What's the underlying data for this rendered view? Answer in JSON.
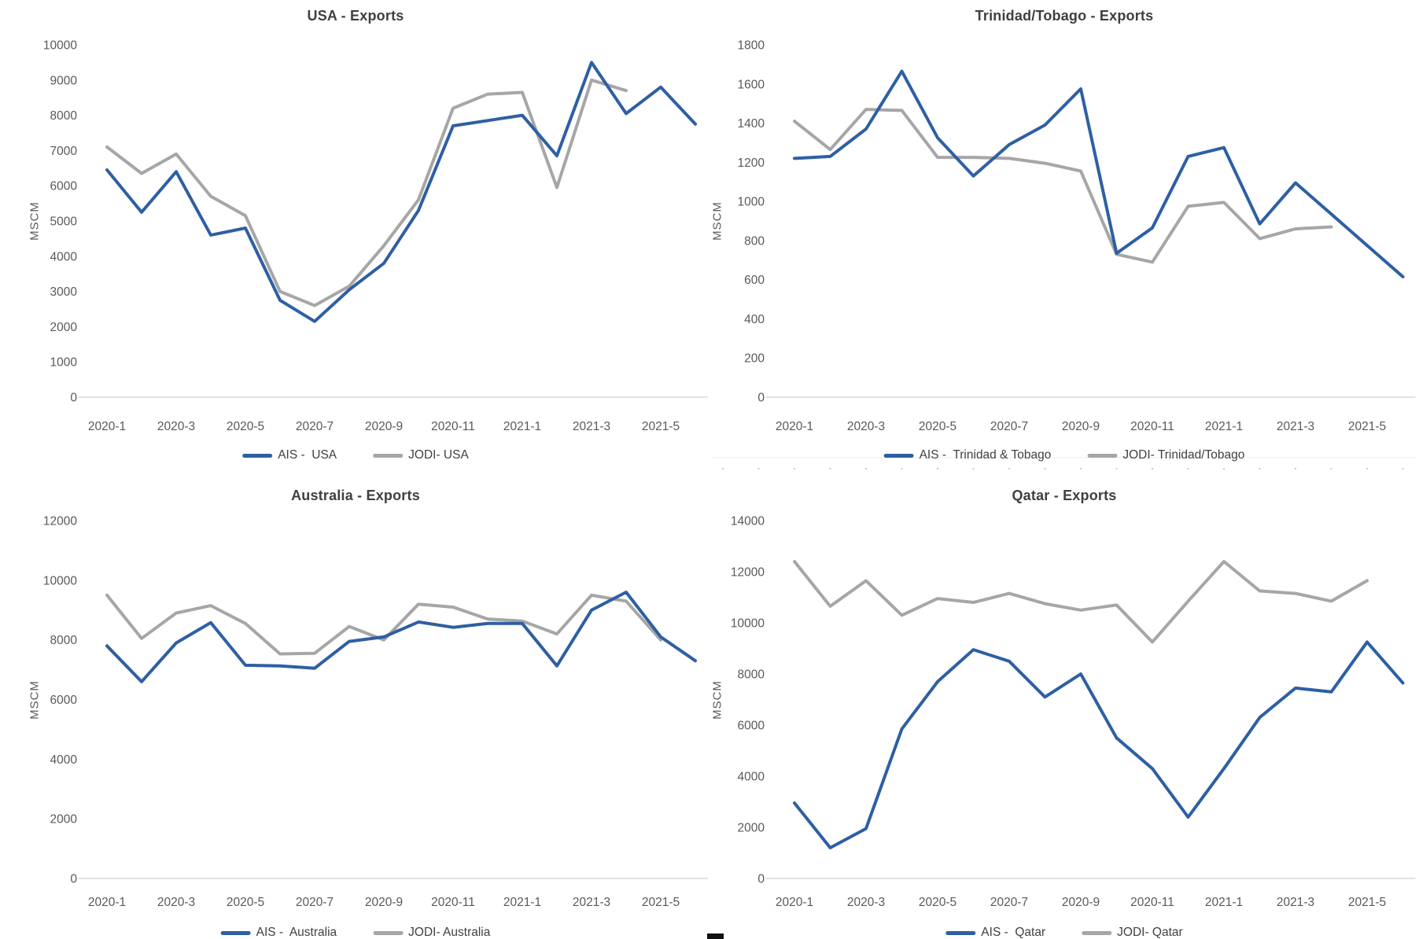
{
  "page": {
    "background": "#ffffff",
    "axis_line_color": "#d9d9d9",
    "tick_label_color": "#595959",
    "title_color": "#3f3f3f"
  },
  "chart_data": [
    {
      "id": "usa",
      "type": "line",
      "title": "USA - Exports",
      "ylabel": "MSCM",
      "categories": [
        "2020-1",
        "2020-2",
        "2020-3",
        "2020-4",
        "2020-5",
        "2020-6",
        "2020-7",
        "2020-8",
        "2020-9",
        "2020-10",
        "2020-11",
        "2020-12",
        "2021-1",
        "2021-2",
        "2021-3",
        "2021-4",
        "2021-5",
        "2021-6"
      ],
      "x_ticks": [
        "2020-1",
        "2020-3",
        "2020-5",
        "2020-7",
        "2020-9",
        "2020-11",
        "2021-1",
        "2021-3",
        "2021-5"
      ],
      "ylim": [
        0,
        10000
      ],
      "ytick_step": 1000,
      "grid": false,
      "legend_position": "bottom",
      "series": [
        {
          "name": "AIS -  USA",
          "color": "#2E5FA3",
          "values": [
            6450,
            5250,
            6400,
            4600,
            4800,
            2750,
            2150,
            3050,
            3800,
            5300,
            7700,
            7850,
            8000,
            6850,
            9500,
            8050,
            8800,
            7750
          ]
        },
        {
          "name": "JODI- USA",
          "color": "#A6A6A6",
          "values": [
            7100,
            6350,
            6900,
            5700,
            5150,
            3000,
            2600,
            3150,
            4300,
            5600,
            8200,
            8600,
            8650,
            5950,
            9000,
            8700,
            null,
            null
          ]
        }
      ]
    },
    {
      "id": "trinidad-tobago",
      "type": "line",
      "title": "Trinidad/Tobago - Exports",
      "ylabel": "MSCM",
      "categories": [
        "2020-1",
        "2020-2",
        "2020-3",
        "2020-4",
        "2020-5",
        "2020-6",
        "2020-7",
        "2020-8",
        "2020-9",
        "2020-10",
        "2020-11",
        "2020-12",
        "2021-1",
        "2021-2",
        "2021-3",
        "2021-4",
        "2021-5",
        "2021-6"
      ],
      "x_ticks": [
        "2020-1",
        "2020-3",
        "2020-5",
        "2020-7",
        "2020-9",
        "2020-11",
        "2021-1",
        "2021-3",
        "2021-5"
      ],
      "ylim": [
        0,
        1800
      ],
      "ytick_step": 200,
      "grid": false,
      "legend_position": "bottom",
      "series": [
        {
          "name": "AIS -  Trinidad & Tobago",
          "color": "#2E5FA3",
          "values": [
            1220,
            1230,
            1370,
            1665,
            1325,
            1130,
            1290,
            1390,
            1575,
            735,
            865,
            1230,
            1275,
            885,
            1095,
            935,
            775,
            615
          ]
        },
        {
          "name": "JODI- Trinidad/Tobago",
          "color": "#A6A6A6",
          "values": [
            1410,
            1265,
            1470,
            1465,
            1225,
            1225,
            1220,
            1195,
            1155,
            730,
            690,
            975,
            995,
            810,
            860,
            870,
            null,
            null
          ]
        }
      ]
    },
    {
      "id": "australia",
      "type": "line",
      "title": "Australia - Exports",
      "ylabel": "MSCM",
      "categories": [
        "2020-1",
        "2020-2",
        "2020-3",
        "2020-4",
        "2020-5",
        "2020-6",
        "2020-7",
        "2020-8",
        "2020-9",
        "2020-10",
        "2020-11",
        "2020-12",
        "2021-1",
        "2021-2",
        "2021-3",
        "2021-4",
        "2021-5",
        "2021-6"
      ],
      "x_ticks": [
        "2020-1",
        "2020-3",
        "2020-5",
        "2020-7",
        "2020-9",
        "2020-11",
        "2021-1",
        "2021-3",
        "2021-5"
      ],
      "ylim": [
        0,
        12000
      ],
      "ytick_step": 2000,
      "grid": false,
      "legend_position": "bottom",
      "series": [
        {
          "name": "AIS -  Australia",
          "color": "#2E5FA3",
          "values": [
            7800,
            6600,
            7900,
            8580,
            7150,
            7130,
            7050,
            7950,
            8100,
            8600,
            8420,
            8550,
            8550,
            7130,
            9000,
            9600,
            8100,
            7300
          ]
        },
        {
          "name": "JODI- Australia",
          "color": "#A6A6A6",
          "values": [
            9500,
            8050,
            8900,
            9150,
            8550,
            7530,
            7550,
            8450,
            8000,
            9200,
            9100,
            8700,
            8630,
            8200,
            9500,
            9300,
            8000,
            null
          ]
        }
      ]
    },
    {
      "id": "qatar",
      "type": "line",
      "title": "Qatar - Exports",
      "ylabel": "MSCM",
      "categories": [
        "2020-1",
        "2020-2",
        "2020-3",
        "2020-4",
        "2020-5",
        "2020-6",
        "2020-7",
        "2020-8",
        "2020-9",
        "2020-10",
        "2020-11",
        "2020-12",
        "2021-1",
        "2021-2",
        "2021-3",
        "2021-4",
        "2021-5",
        "2021-6"
      ],
      "x_ticks": [
        "2020-1",
        "2020-3",
        "2020-5",
        "2020-7",
        "2020-9",
        "2020-11",
        "2021-1",
        "2021-3",
        "2021-5"
      ],
      "ylim": [
        0,
        14000
      ],
      "ytick_step": 2000,
      "grid": false,
      "legend_position": "bottom",
      "series": [
        {
          "name": "AIS -  Qatar",
          "color": "#2E5FA3",
          "values": [
            2950,
            1200,
            1950,
            5850,
            7700,
            8950,
            8500,
            7100,
            8000,
            5500,
            4300,
            2400,
            4300,
            6300,
            7450,
            7300,
            9250,
            7650
          ]
        },
        {
          "name": "JODI- Qatar",
          "color": "#A6A6A6",
          "values": [
            12400,
            10650,
            11650,
            10300,
            10950,
            10800,
            11150,
            10750,
            10500,
            10700,
            9250,
            10850,
            12400,
            11250,
            11150,
            10850,
            11650,
            null
          ]
        }
      ]
    }
  ]
}
